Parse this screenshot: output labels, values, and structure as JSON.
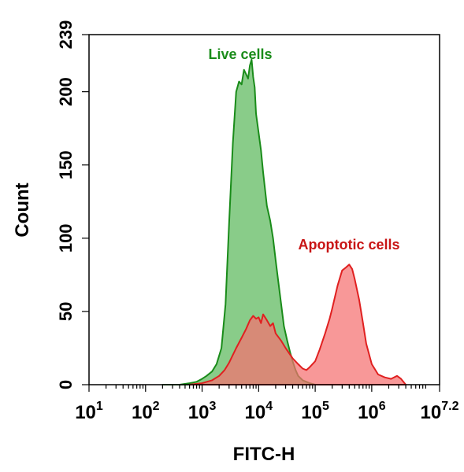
{
  "chart_data": {
    "type": "area",
    "xlabel": "FITC-H",
    "ylabel": "Count",
    "x_scale": "log",
    "xlim": [
      10,
      15848932
    ],
    "ylim": [
      0,
      239
    ],
    "x_ticks": [
      {
        "value": 10,
        "base": "10",
        "exp": "1"
      },
      {
        "value": 100,
        "base": "10",
        "exp": "2"
      },
      {
        "value": 1000,
        "base": "10",
        "exp": "3"
      },
      {
        "value": 10000,
        "base": "10",
        "exp": "4"
      },
      {
        "value": 100000,
        "base": "10",
        "exp": "5"
      },
      {
        "value": 1000000,
        "base": "10",
        "exp": "6"
      },
      {
        "value": 15848932,
        "base": "10",
        "exp": "7.2"
      }
    ],
    "y_ticks": [
      "0",
      "50",
      "100",
      "150",
      "200",
      "239"
    ],
    "y_tick_values": [
      0,
      50,
      100,
      150,
      200,
      239
    ],
    "grid": false,
    "legend": "none",
    "series": [
      {
        "name": "Live cells",
        "color": "#1a8c1a",
        "fill": "#5cb85c",
        "x": [
          200,
          400,
          600,
          800,
          1000,
          1200,
          1500,
          1800,
          2200,
          2600,
          3000,
          3500,
          4000,
          4500,
          5000,
          5500,
          6000,
          6500,
          7000,
          7500,
          8000,
          8500,
          9000,
          10000,
          11000,
          12000,
          14000,
          16000,
          18000,
          20000,
          22000,
          25000,
          28000,
          32000,
          36000,
          40000,
          45000,
          50000,
          60000,
          80000,
          100000
        ],
        "values": [
          0,
          0,
          1,
          2,
          4,
          6,
          9,
          14,
          25,
          55,
          110,
          165,
          200,
          207,
          205,
          215,
          212,
          209,
          218,
          222,
          210,
          203,
          185,
          172,
          160,
          145,
          122,
          112,
          100,
          85,
          72,
          55,
          40,
          30,
          22,
          16,
          10,
          6,
          3,
          1,
          0
        ]
      },
      {
        "name": "Apoptotic cells",
        "color": "#e02020",
        "fill": "#f57070",
        "x": [
          600,
          1000,
          1500,
          2000,
          2500,
          3000,
          4000,
          5000,
          6000,
          7000,
          8000,
          9000,
          10000,
          11000,
          12000,
          14000,
          16000,
          18000,
          20000,
          25000,
          30000,
          40000,
          50000,
          60000,
          70000,
          80000,
          100000,
          120000,
          150000,
          180000,
          200000,
          250000,
          300000,
          350000,
          400000,
          450000,
          500000,
          600000,
          700000,
          800000,
          1000000,
          1300000,
          1700000,
          2200000,
          2800000,
          3300000,
          4000000
        ],
        "values": [
          0,
          1,
          3,
          6,
          10,
          15,
          25,
          32,
          38,
          44,
          47,
          45,
          46,
          42,
          48,
          44,
          40,
          42,
          35,
          30,
          25,
          18,
          14,
          11,
          10,
          12,
          16,
          24,
          35,
          45,
          52,
          68,
          78,
          80,
          82,
          79,
          72,
          58,
          42,
          28,
          14,
          7,
          5,
          4,
          6,
          4,
          0
        ]
      }
    ]
  }
}
